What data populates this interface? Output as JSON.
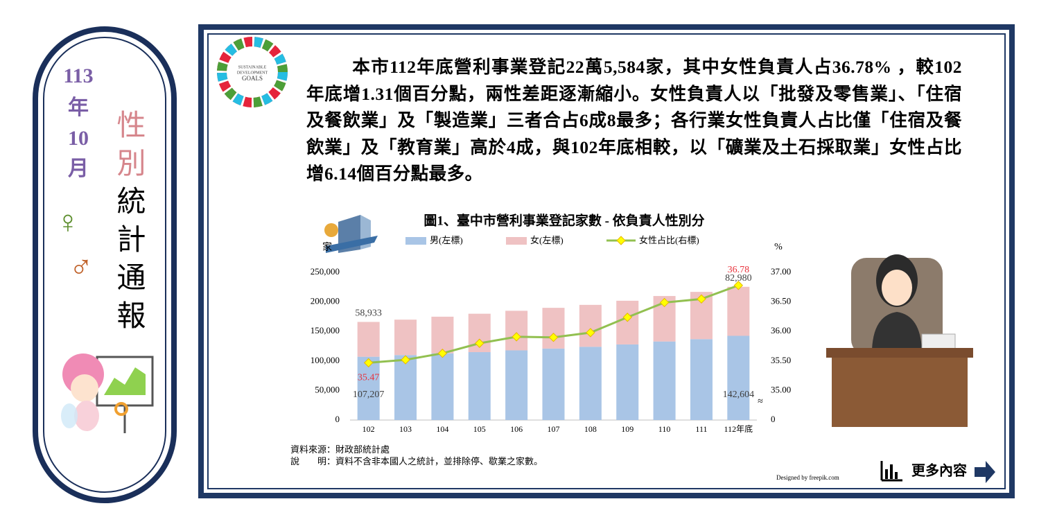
{
  "sidebar": {
    "year": "113",
    "year_unit": "年",
    "month": "10",
    "month_unit": "月",
    "title_pink": "性別",
    "title_black": "統計通報",
    "female_symbol": "♀",
    "male_symbol": "♂"
  },
  "paragraph": "本市112年底營利事業登記22萬5,584家，其中女性負責人占36.78% ，較102年底增1.31個百分點，兩性差距逐漸縮小。女性負責人以「批發及零售業」、「住宿及餐飲業」及「製造業」三者合占6成8最多；各行業女性負責人占比僅「住宿及餐飲業」及「教育業」高於4成，與102年底相較，以「礦業及土石採取業」女性占比增6.14個百分點最多。",
  "chart_data": {
    "type": "bar",
    "stacked": true,
    "title": "圖1、臺中市營利事業登記家數 - 依負責人性別分",
    "ylabel": "家",
    "y2label": "%",
    "y2_break_symbol": "≈",
    "categories": [
      "102",
      "103",
      "104",
      "105",
      "106",
      "107",
      "108",
      "109",
      "110",
      "111",
      "112年底"
    ],
    "series": [
      {
        "name": "男(左標)",
        "type": "bar",
        "color": "#a9c5e6",
        "values": [
          107207,
          110000,
          113000,
          115000,
          118000,
          121000,
          124000,
          128000,
          133000,
          137000,
          142604
        ],
        "value_labels": [
          "107,207",
          null,
          null,
          null,
          null,
          null,
          null,
          null,
          null,
          null,
          "142,604"
        ]
      },
      {
        "name": "女(左標)",
        "type": "bar",
        "color": "#efc2c3",
        "values": [
          58933,
          60000,
          62000,
          65000,
          67000,
          69000,
          71000,
          74000,
          77000,
          80000,
          82980
        ],
        "value_labels": [
          "58,933",
          null,
          null,
          null,
          null,
          null,
          null,
          null,
          null,
          null,
          "82,980"
        ]
      },
      {
        "name": "女性占比(右標)",
        "type": "line",
        "axis": "y2",
        "color": "#92c050",
        "marker_color": "#ffff00",
        "label_color": "#e8323c",
        "values": [
          35.47,
          35.52,
          35.63,
          35.8,
          35.91,
          35.9,
          35.98,
          36.24,
          36.49,
          36.55,
          36.78
        ],
        "value_labels": [
          "35.47",
          null,
          null,
          null,
          null,
          null,
          null,
          null,
          null,
          null,
          "36.78"
        ]
      }
    ],
    "ylim": [
      0,
      250000
    ],
    "yticks": [
      0,
      {
        "value": 50000,
        "label": "50,000"
      },
      {
        "value": 100000,
        "label": "100,000"
      },
      {
        "value": 150000,
        "label": "150,000"
      },
      {
        "value": 200000,
        "label": "200,000"
      },
      {
        "value": 250000,
        "label": "250,000"
      }
    ],
    "y2lim": [
      34.5,
      37
    ],
    "y2ticks": [
      0,
      {
        "value": 35,
        "label": "35.00"
      },
      {
        "value": 35.5,
        "label": "35.50"
      },
      {
        "value": 36,
        "label": "36.00"
      },
      {
        "value": 36.5,
        "label": "36.50"
      },
      {
        "value": 37,
        "label": "37.00"
      }
    ],
    "grid": false,
    "legend": "top"
  },
  "notes": {
    "source": "資料來源：財政部統計處",
    "explain": "說　　明：資料不含非本國人之統計，並排除停、歇業之家數。"
  },
  "credit": "Designed by freepik.com",
  "more": "更多內容"
}
